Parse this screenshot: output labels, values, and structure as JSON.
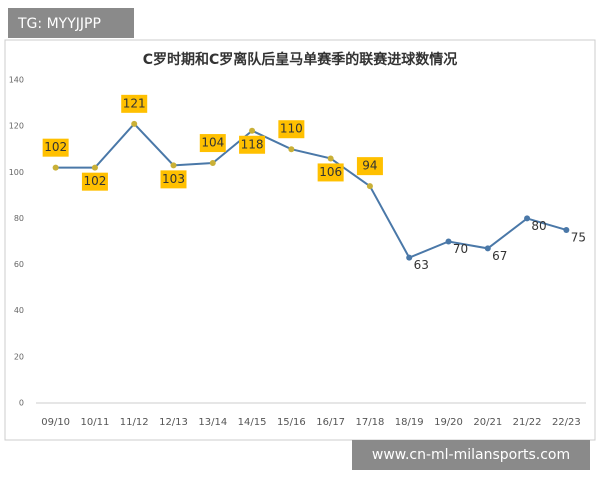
{
  "badge": "TG: MYYJJPP",
  "watermark": "www.cn-ml-milansports.com",
  "chart_data": {
    "type": "line",
    "title": "C罗时期和C罗离队后皇马单赛季的联赛进球数情况",
    "categories": [
      "09/10",
      "10/11",
      "11/12",
      "12/13",
      "13/14",
      "14/15",
      "15/16",
      "16/17",
      "17/18",
      "18/19",
      "19/20",
      "20/21",
      "21/22",
      "22/23"
    ],
    "values": [
      102,
      102,
      121,
      103,
      104,
      118,
      110,
      106,
      94,
      63,
      70,
      67,
      80,
      75
    ],
    "label_box": [
      true,
      true,
      true,
      true,
      true,
      true,
      true,
      true,
      true,
      false,
      false,
      false,
      false,
      false
    ],
    "color": "#4a78a8",
    "box_color": "#ffc000",
    "ylim": [
      0,
      140
    ],
    "yticks": [
      0,
      20,
      40,
      60,
      80,
      100,
      120,
      140
    ],
    "grid": false
  }
}
